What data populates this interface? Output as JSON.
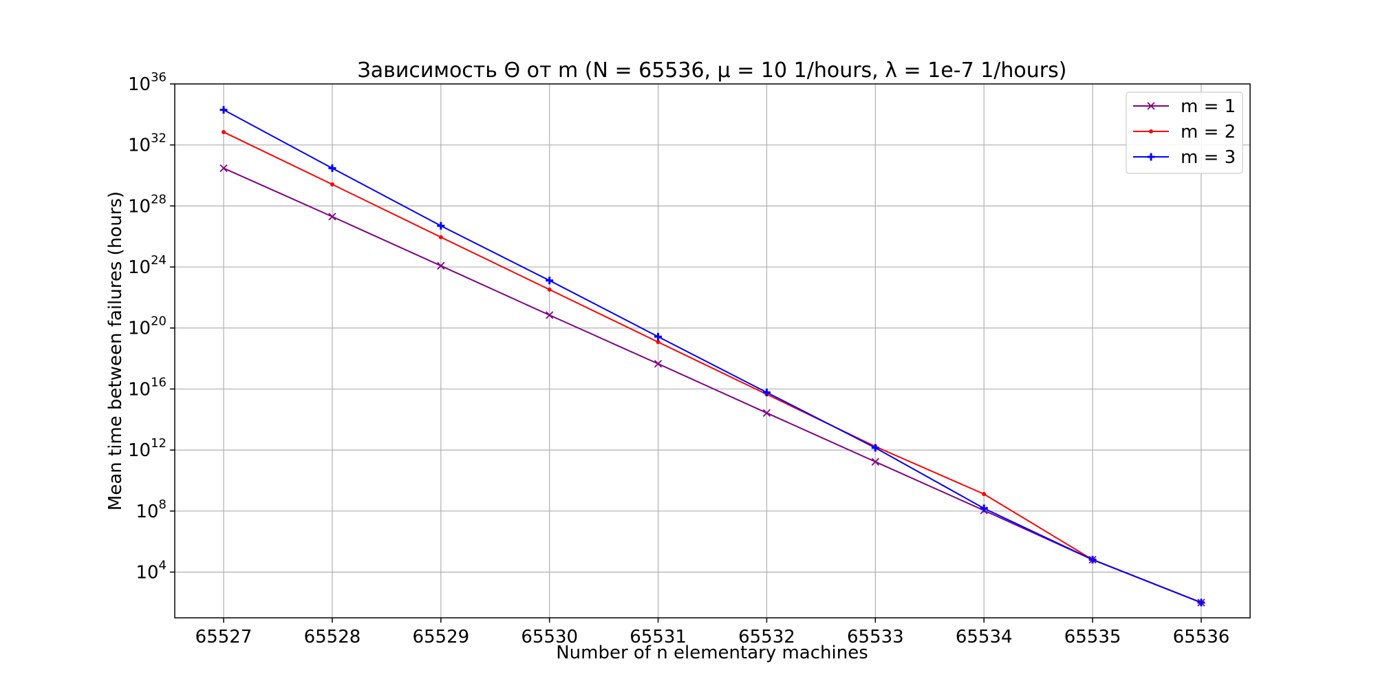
{
  "chart_data": {
    "type": "line",
    "title": "Зависимость Θ от m (N = 65536, μ = 10 1/hours, λ = 1e-7 1/hours)",
    "xlabel": "Number of n elementary machines",
    "ylabel": "Mean time between failures (hours)",
    "y_scale": "log",
    "ylim": [
      10.0,
      1e+36
    ],
    "xlim": [
      65526.55,
      65536.45
    ],
    "grid": true,
    "legend_position": "upper right",
    "x": [
      65527,
      65528,
      65529,
      65530,
      65531,
      65532,
      65533,
      65534,
      65535,
      65536
    ],
    "x_tick_labels": [
      "65527",
      "65528",
      "65529",
      "65530",
      "65531",
      "65532",
      "65533",
      "65534",
      "65535",
      "65536"
    ],
    "y_ticks": [
      {
        "value": 10000.0,
        "base": "10",
        "exp": "4"
      },
      {
        "value": 100000000.0,
        "base": "10",
        "exp": "8"
      },
      {
        "value": 1000000000000.0,
        "base": "10",
        "exp": "12"
      },
      {
        "value": 1e+16,
        "base": "10",
        "exp": "16"
      },
      {
        "value": 1e+20,
        "base": "10",
        "exp": "20"
      },
      {
        "value": 1e+24,
        "base": "10",
        "exp": "24"
      },
      {
        "value": 1e+28,
        "base": "10",
        "exp": "28"
      },
      {
        "value": 1e+32,
        "base": "10",
        "exp": "32"
      },
      {
        "value": 1e+36,
        "base": "10",
        "exp": "36"
      }
    ],
    "series": [
      {
        "name": "m = 1",
        "color": "#800080",
        "marker": "x",
        "values": [
          3e+30,
          2e+27,
          1.2e+24,
          7e+20,
          4.5e+17,
          270000000000000.0,
          170000000000.0,
          110000000.0,
          65000.0,
          100.0
        ]
      },
      {
        "name": "m = 2",
        "color": "#ff0000",
        "marker": "dot",
        "values": [
          7e+32,
          2.6e+29,
          9e+25,
          3.3e+22,
          1.2e+19,
          4500000000000000.0,
          1700000000000.0,
          1300000000.0,
          65000.0,
          100.0
        ]
      },
      {
        "name": "m = 3",
        "color": "#0000ff",
        "marker": "plus",
        "values": [
          2e+34,
          3e+30,
          5e+26,
          1.3e+23,
          2.7e+19,
          6000000000000000.0,
          1400000000000.0,
          150000000.0,
          65000.0,
          100.0
        ]
      }
    ]
  }
}
